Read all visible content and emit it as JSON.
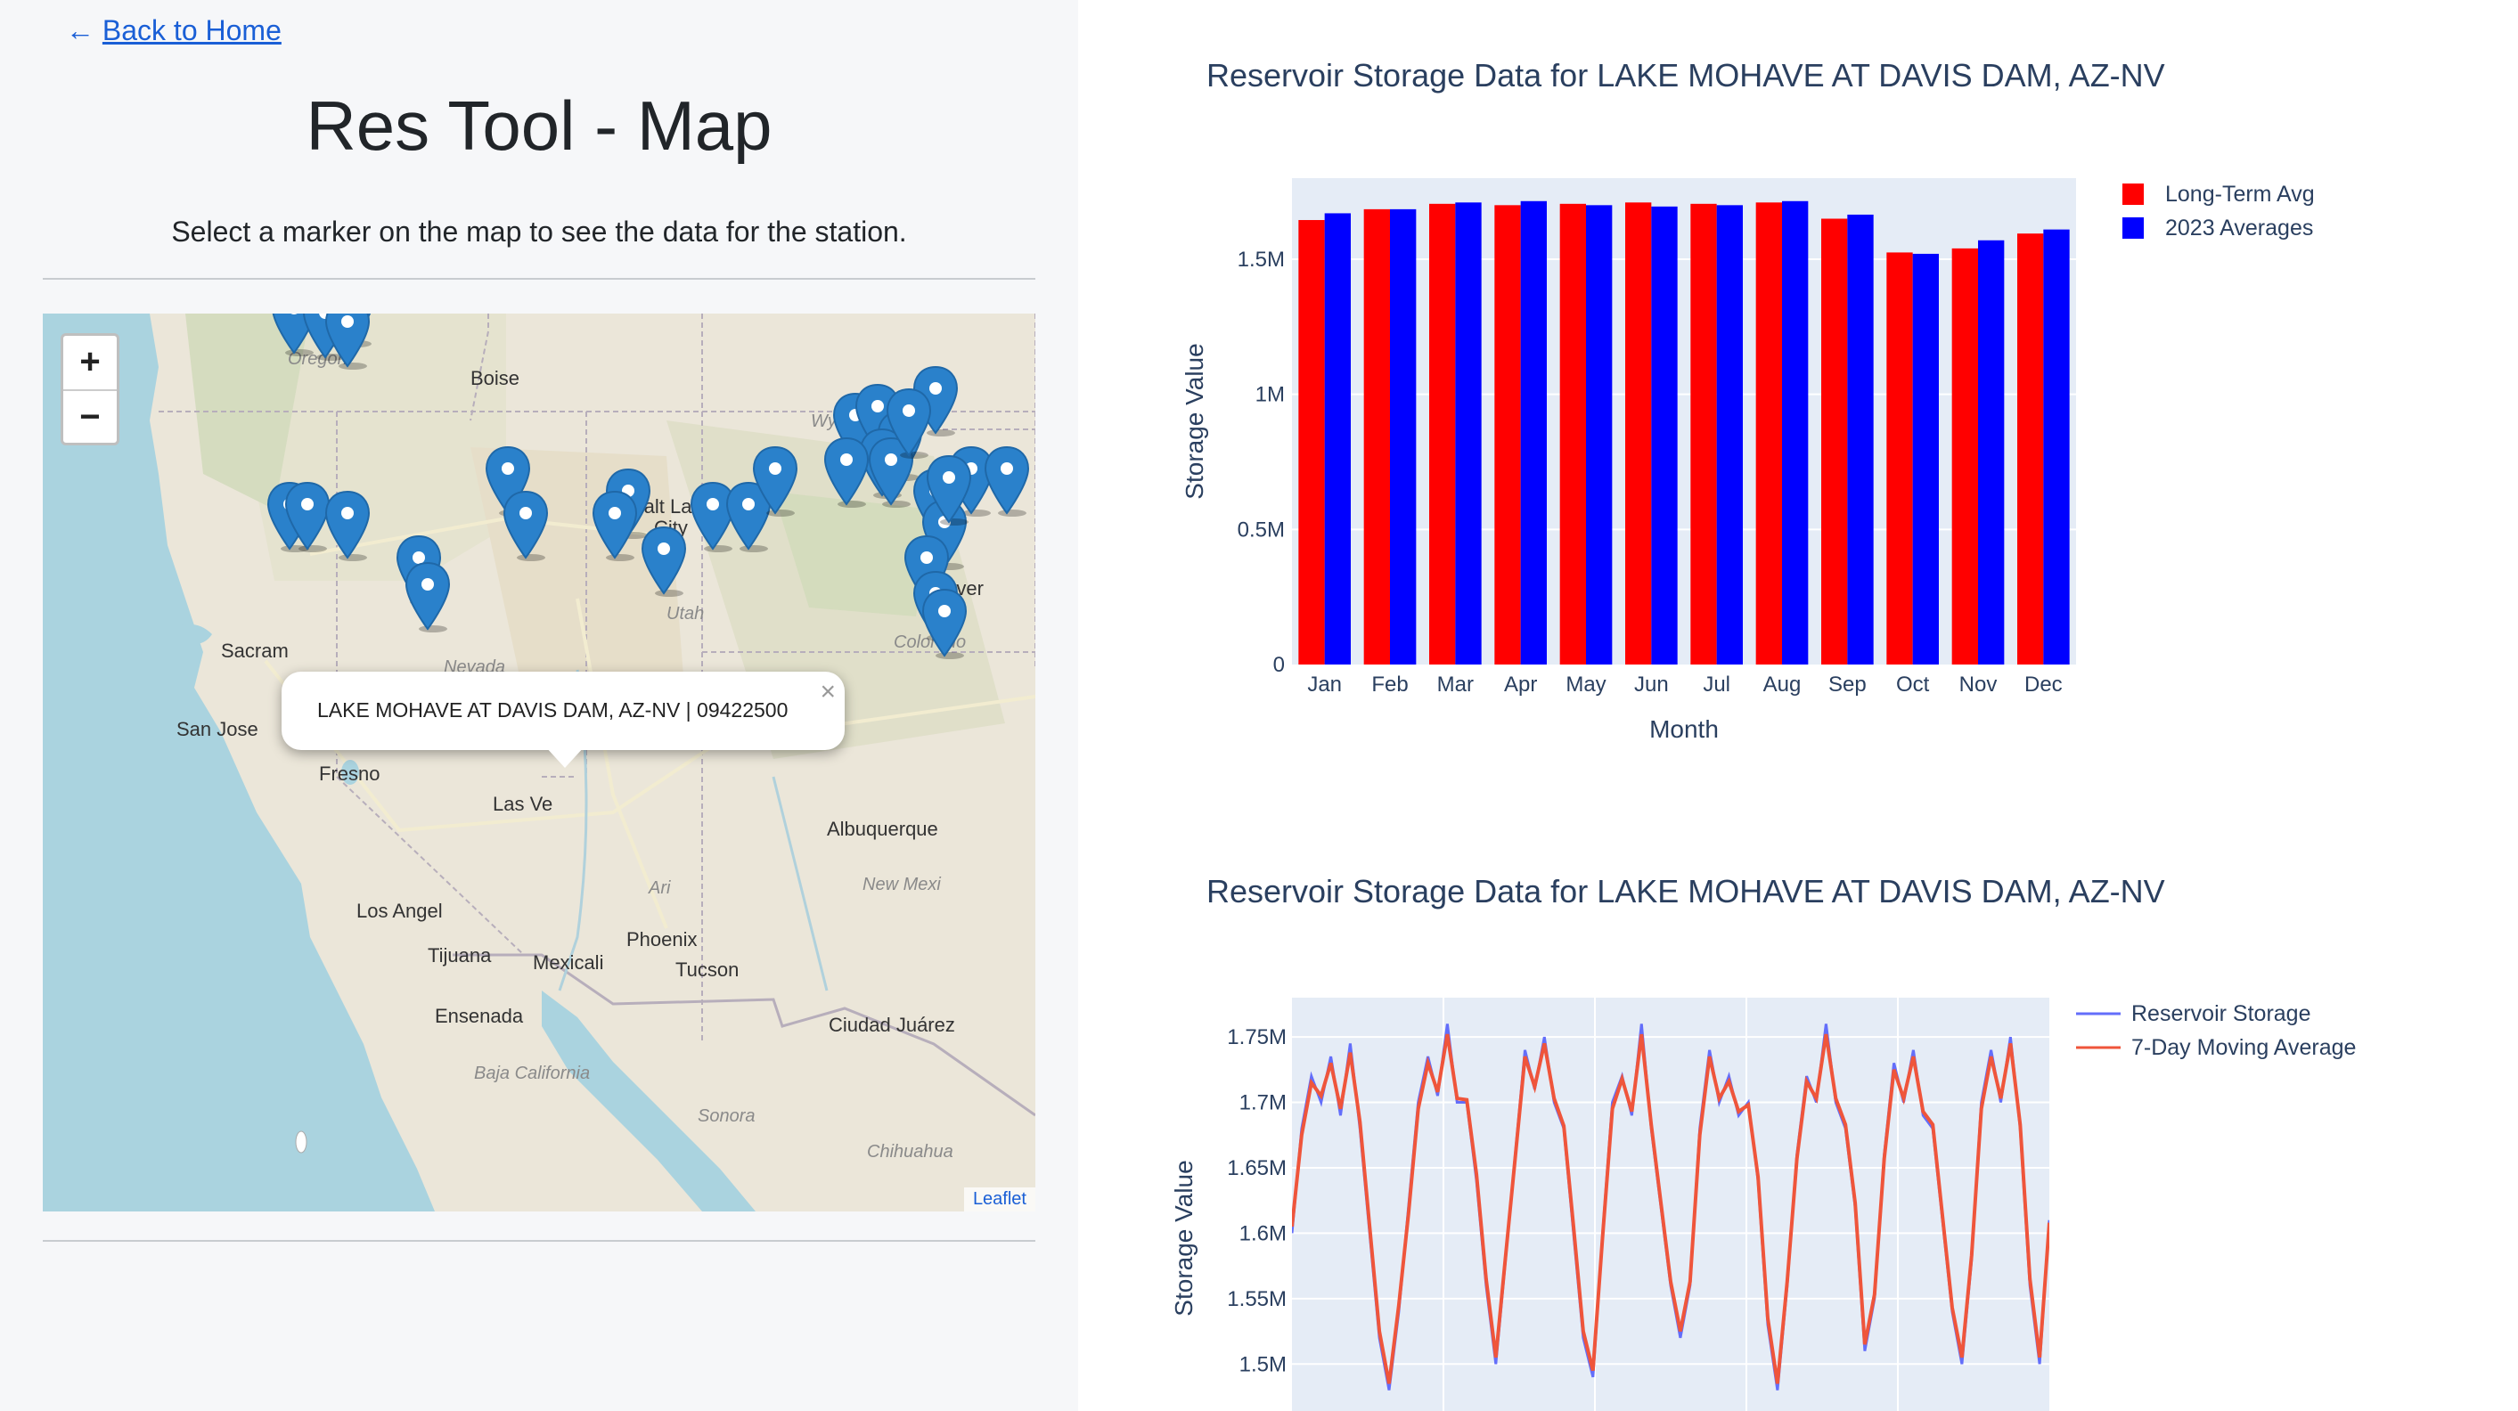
{
  "nav": {
    "back_arrow": "←",
    "back_label": "Back to Home"
  },
  "page": {
    "title": "Res Tool - Map",
    "subtitle": "Select a marker on the map to see the data for the station."
  },
  "map": {
    "zoom_in": "+",
    "zoom_out": "−",
    "attribution": "Leaflet",
    "popup": {
      "text": "LAKE MOHAVE AT DAVIS DAM, AZ-NV | 09422500",
      "close": "×"
    },
    "labels": {
      "oregon": "Oregon",
      "boise": "Boise",
      "wyoming": "Wyoming",
      "salt_lake_1": "Salt Lake",
      "salt_lake_2": "City",
      "denver": "Denver",
      "utah": "Utah",
      "colorado": "Colorado",
      "nevada": "Nevada",
      "sacramento": "Sacram",
      "san_jose": "San Jose",
      "fresno": "Fresno",
      "las_vegas": "Las Ve",
      "albuquerque": "Albuquerque",
      "new_mexico": "New Mexi",
      "arizona": "Ari",
      "los_angeles": "Los Angel",
      "phoenix": "Phoenix",
      "tijuana": "Tijuana",
      "mexicali": "Mexicali",
      "tucson": "Tucson",
      "ensenada": "Ensenada",
      "ciudad_juarez": "Ciudad Juárez",
      "baja_california": "Baja California",
      "sonora": "Sonora",
      "chihuahua": "Chihuahua"
    },
    "marker_color": "#2a81cb"
  },
  "chart_data": [
    {
      "type": "bar",
      "title": "Reservoir Storage Data for LAKE MOHAVE AT DAVIS DAM, AZ-NV",
      "xlabel": "Month",
      "ylabel": "Storage Value",
      "categories": [
        "Jan",
        "Feb",
        "Mar",
        "Apr",
        "May",
        "Jun",
        "Jul",
        "Aug",
        "Sep",
        "Oct",
        "Nov",
        "Dec"
      ],
      "series": [
        {
          "name": "Long-Term Avg",
          "color": "#ff0000",
          "values": [
            1645000,
            1685000,
            1705000,
            1700000,
            1705000,
            1710000,
            1705000,
            1710000,
            1650000,
            1525000,
            1540000,
            1595000
          ]
        },
        {
          "name": "2023 Averages",
          "color": "#0000ff",
          "values": [
            1670000,
            1685000,
            1710000,
            1715000,
            1700000,
            1695000,
            1700000,
            1715000,
            1665000,
            1520000,
            1570000,
            1610000
          ]
        }
      ],
      "ylim": [
        0,
        1800000
      ],
      "yticks": [
        0,
        500000,
        1000000,
        1500000
      ],
      "ytick_labels": [
        "0",
        "0.5M",
        "1M",
        "1.5M"
      ],
      "legend": "top-right",
      "grid": true
    },
    {
      "type": "line",
      "title": "Reservoir Storage Data for LAKE MOHAVE AT DAVIS DAM, AZ-NV",
      "ylabel": "Storage Value",
      "yticks": [
        1500000,
        1550000,
        1600000,
        1650000,
        1700000,
        1750000
      ],
      "ytick_labels": [
        "1.5M",
        "1.55M",
        "1.6M",
        "1.65M",
        "1.7M",
        "1.75M"
      ],
      "legend": "top-right",
      "grid": true,
      "series": [
        {
          "name": "Reservoir Storage",
          "color": "#636efa",
          "values": [
            1600000,
            1680000,
            1720000,
            1700000,
            1735000,
            1690000,
            1745000,
            1680000,
            1600000,
            1520000,
            1480000,
            1540000,
            1620000,
            1700000,
            1735000,
            1705000,
            1760000,
            1700000,
            1700000,
            1640000,
            1560000,
            1500000,
            1580000,
            1660000,
            1740000,
            1710000,
            1750000,
            1700000,
            1680000,
            1600000,
            1520000,
            1490000,
            1600000,
            1700000,
            1720000,
            1690000,
            1760000,
            1680000,
            1620000,
            1560000,
            1520000,
            1560000,
            1680000,
            1740000,
            1700000,
            1720000,
            1690000,
            1700000,
            1640000,
            1530000,
            1480000,
            1560000,
            1660000,
            1720000,
            1700000,
            1760000,
            1700000,
            1680000,
            1620000,
            1510000,
            1550000,
            1660000,
            1730000,
            1700000,
            1740000,
            1690000,
            1680000,
            1610000,
            1540000,
            1500000,
            1580000,
            1700000,
            1740000,
            1700000,
            1750000,
            1680000,
            1560000,
            1500000,
            1610000
          ]
        },
        {
          "name": "7-Day Moving Average",
          "color": "#ef553b",
          "values": [
            1605000,
            1675000,
            1715000,
            1705000,
            1730000,
            1695000,
            1738000,
            1685000,
            1605000,
            1525000,
            1485000,
            1545000,
            1615000,
            1695000,
            1730000,
            1708000,
            1752000,
            1703000,
            1702000,
            1645000,
            1565000,
            1505000,
            1582000,
            1658000,
            1735000,
            1712000,
            1745000,
            1703000,
            1682000,
            1605000,
            1525000,
            1495000,
            1598000,
            1695000,
            1718000,
            1693000,
            1752000,
            1683000,
            1623000,
            1563000,
            1525000,
            1563000,
            1675000,
            1735000,
            1703000,
            1716000,
            1693000,
            1698000,
            1643000,
            1535000,
            1485000,
            1563000,
            1657000,
            1716000,
            1703000,
            1752000,
            1703000,
            1683000,
            1623000,
            1515000,
            1553000,
            1657000,
            1725000,
            1703000,
            1735000,
            1693000,
            1683000,
            1613000,
            1543000,
            1505000,
            1583000,
            1695000,
            1735000,
            1703000,
            1745000,
            1683000,
            1565000,
            1505000,
            1608000
          ]
        }
      ]
    }
  ]
}
